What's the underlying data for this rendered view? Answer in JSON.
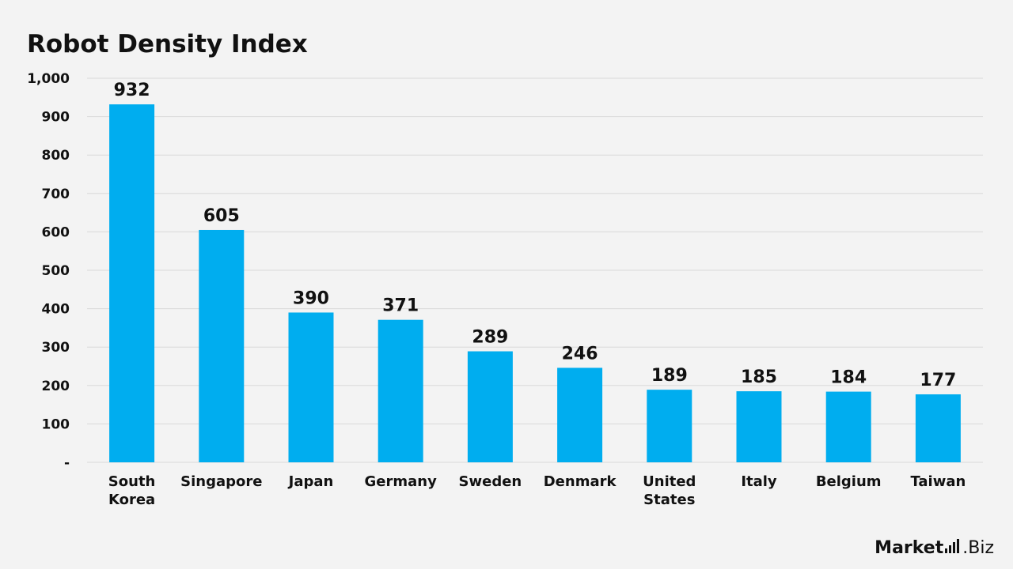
{
  "chart_data": {
    "type": "bar",
    "title": "Robot Density Index",
    "categories": [
      "South Korea",
      "Singapore",
      "Japan",
      "Germany",
      "Sweden",
      "Denmark",
      "United States",
      "Italy",
      "Belgium",
      "Taiwan"
    ],
    "category_lines": [
      [
        "South",
        "Korea"
      ],
      [
        "Singapore"
      ],
      [
        "Japan"
      ],
      [
        "Germany"
      ],
      [
        "Sweden"
      ],
      [
        "Denmark"
      ],
      [
        "United",
        "States"
      ],
      [
        "Italy"
      ],
      [
        "Belgium"
      ],
      [
        "Taiwan"
      ]
    ],
    "values": [
      932,
      605,
      390,
      371,
      289,
      246,
      189,
      185,
      184,
      177
    ],
    "value_labels": [
      "932",
      "605",
      "390",
      "371",
      "289",
      "246",
      "189",
      "185",
      "184",
      "177"
    ],
    "ylim": [
      0,
      1000
    ],
    "yticks": [
      0,
      100,
      200,
      300,
      400,
      500,
      600,
      700,
      800,
      900,
      1000
    ],
    "ytick_labels": [
      "-",
      "100",
      "200",
      "300",
      "400",
      "500",
      "600",
      "700",
      "800",
      "900",
      "1,000"
    ],
    "xlabel": "",
    "ylabel": "",
    "grid": true,
    "legend": false,
    "bar_color": "#00adef",
    "grid_color": "#d9d9d9"
  },
  "brand": {
    "strong": "Market",
    "suffix": ".Biz",
    "icon": "bar-chart-icon"
  }
}
